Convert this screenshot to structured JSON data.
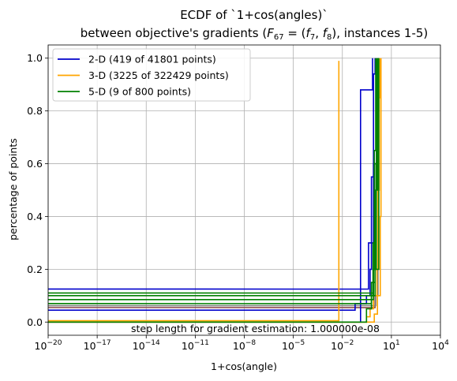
{
  "chart_data": {
    "type": "line",
    "title_line1": "ECDF of `1+cos(angles)`",
    "title_line2_prefix": "between objective's gradients (",
    "title_line2_math": {
      "F": "F",
      "F_sub": "67",
      "eq": " = (",
      "f1": "f",
      "f1_sub": "7",
      "sep": ", ",
      "f2": "f",
      "f2_sub": "8",
      "close": ")"
    },
    "title_line2_suffix": ", instances 1-5)",
    "xlabel": "1+cos(angle)",
    "ylabel": "percentage of points",
    "x_scale": "log",
    "xlim": [
      1e-20,
      10000
    ],
    "ylim": [
      -0.05,
      1.05
    ],
    "x_ticks": [
      {
        "base": "10",
        "exp": "−20",
        "value": 1e-20
      },
      {
        "base": "10",
        "exp": "−17",
        "value": 1e-17
      },
      {
        "base": "10",
        "exp": "−14",
        "value": 1e-14
      },
      {
        "base": "10",
        "exp": "−11",
        "value": 1e-11
      },
      {
        "base": "10",
        "exp": "−8",
        "value": 1e-08
      },
      {
        "base": "10",
        "exp": "−5",
        "value": 1e-05
      },
      {
        "base": "10",
        "exp": "−2",
        "value": 0.01
      },
      {
        "base": "10",
        "exp": "1",
        "value": 10
      },
      {
        "base": "10",
        "exp": "4",
        "value": 10000
      }
    ],
    "y_ticks": [
      {
        "label": "0.0",
        "value": 0.0
      },
      {
        "label": "0.2",
        "value": 0.2
      },
      {
        "label": "0.4",
        "value": 0.4
      },
      {
        "label": "0.6",
        "value": 0.6
      },
      {
        "label": "0.8",
        "value": 0.8
      },
      {
        "label": "1.0",
        "value": 1.0
      }
    ],
    "grid": true,
    "legend_position": "top-left",
    "annotation": "step length for gradient estimation: 1.000000e-08",
    "series": [
      {
        "name": "2-D (419 of 41801 points)",
        "color": "#0000cc",
        "instances": [
          {
            "y0": 0.125,
            "jumps": [
              [
                0.25,
                0.125
              ],
              [
                0.4,
                0.3
              ],
              [
                0.8,
                0.6
              ],
              [
                1.2,
                1.0
              ]
            ]
          },
          {
            "y0": 0.045,
            "jumps": [
              [
                0.05,
                0.045
              ],
              [
                0.06,
                0.07
              ],
              [
                0.3,
                0.1
              ],
              [
                0.5,
                0.2
              ],
              [
                0.6,
                0.55
              ],
              [
                0.8,
                0.94
              ],
              [
                1.0,
                1.0
              ]
            ]
          },
          {
            "y0": 0.0,
            "jumps": [
              [
                0.12,
                0.0
              ],
              [
                0.13,
                0.88
              ],
              [
                0.7,
                1.0
              ]
            ]
          }
        ]
      },
      {
        "name": "3-D (3225 of 322429 points)",
        "color": "#ffa500",
        "instances": [
          {
            "y0": 0.005,
            "jumps": [
              [
                0.006,
                0.005
              ],
              [
                0.0061,
                0.99
              ]
            ]
          },
          {
            "y0": 0.0,
            "jumps": [
              [
                0.2,
                0.0
              ],
              [
                0.3,
                0.02
              ],
              [
                0.5,
                0.05
              ],
              [
                0.8,
                0.1
              ],
              [
                1.3,
                0.2
              ],
              [
                1.5,
                0.5
              ],
              [
                1.8,
                0.85
              ],
              [
                2.0,
                1.0
              ]
            ]
          },
          {
            "y0": 0.0,
            "jumps": [
              [
                0.5,
                0.0
              ],
              [
                0.9,
                0.03
              ],
              [
                1.4,
                0.1
              ],
              [
                2.1,
                0.4
              ],
              [
                2.3,
                1.0
              ]
            ]
          }
        ]
      },
      {
        "name": "5-D (9 of 800 points)",
        "color": "#008000",
        "instances": [
          {
            "y0": 0.11,
            "jumps": [
              [
                0.7,
                0.11
              ],
              [
                0.8,
                0.2
              ],
              [
                0.9,
                0.65
              ],
              [
                1.1,
                1.0
              ]
            ]
          },
          {
            "y0": 0.1,
            "jumps": [
              [
                0.6,
                0.1
              ],
              [
                0.75,
                0.3
              ],
              [
                0.95,
                0.6
              ],
              [
                1.3,
                1.0
              ]
            ]
          },
          {
            "y0": 0.085,
            "jumps": [
              [
                0.5,
                0.085
              ],
              [
                0.8,
                0.2
              ],
              [
                1.2,
                0.8
              ],
              [
                1.5,
                1.0
              ]
            ]
          },
          {
            "y0": 0.07,
            "jumps": [
              [
                0.4,
                0.07
              ],
              [
                0.6,
                0.15
              ],
              [
                1.0,
                0.5
              ],
              [
                1.4,
                0.9
              ],
              [
                1.6,
                1.0
              ]
            ]
          },
          {
            "y0": 0.0,
            "jumps": [
              [
                0.05,
                0.0
              ],
              [
                0.3,
                0.05
              ],
              [
                0.6,
                0.1
              ],
              [
                1.0,
                0.2
              ],
              [
                1.7,
                1.0
              ]
            ]
          }
        ]
      }
    ],
    "extra_lines": [
      {
        "color": "#8b4c4c",
        "y0": 0.055,
        "jumps": [
          [
            0.9,
            0.055
          ],
          [
            1.0,
            0.1
          ],
          [
            1.5,
            1.0
          ]
        ]
      },
      {
        "color": "#808080",
        "y0": 0.062,
        "jumps": [
          [
            1.0,
            0.062
          ],
          [
            1.1,
            0.1
          ],
          [
            1.5,
            1.0
          ]
        ]
      }
    ]
  }
}
